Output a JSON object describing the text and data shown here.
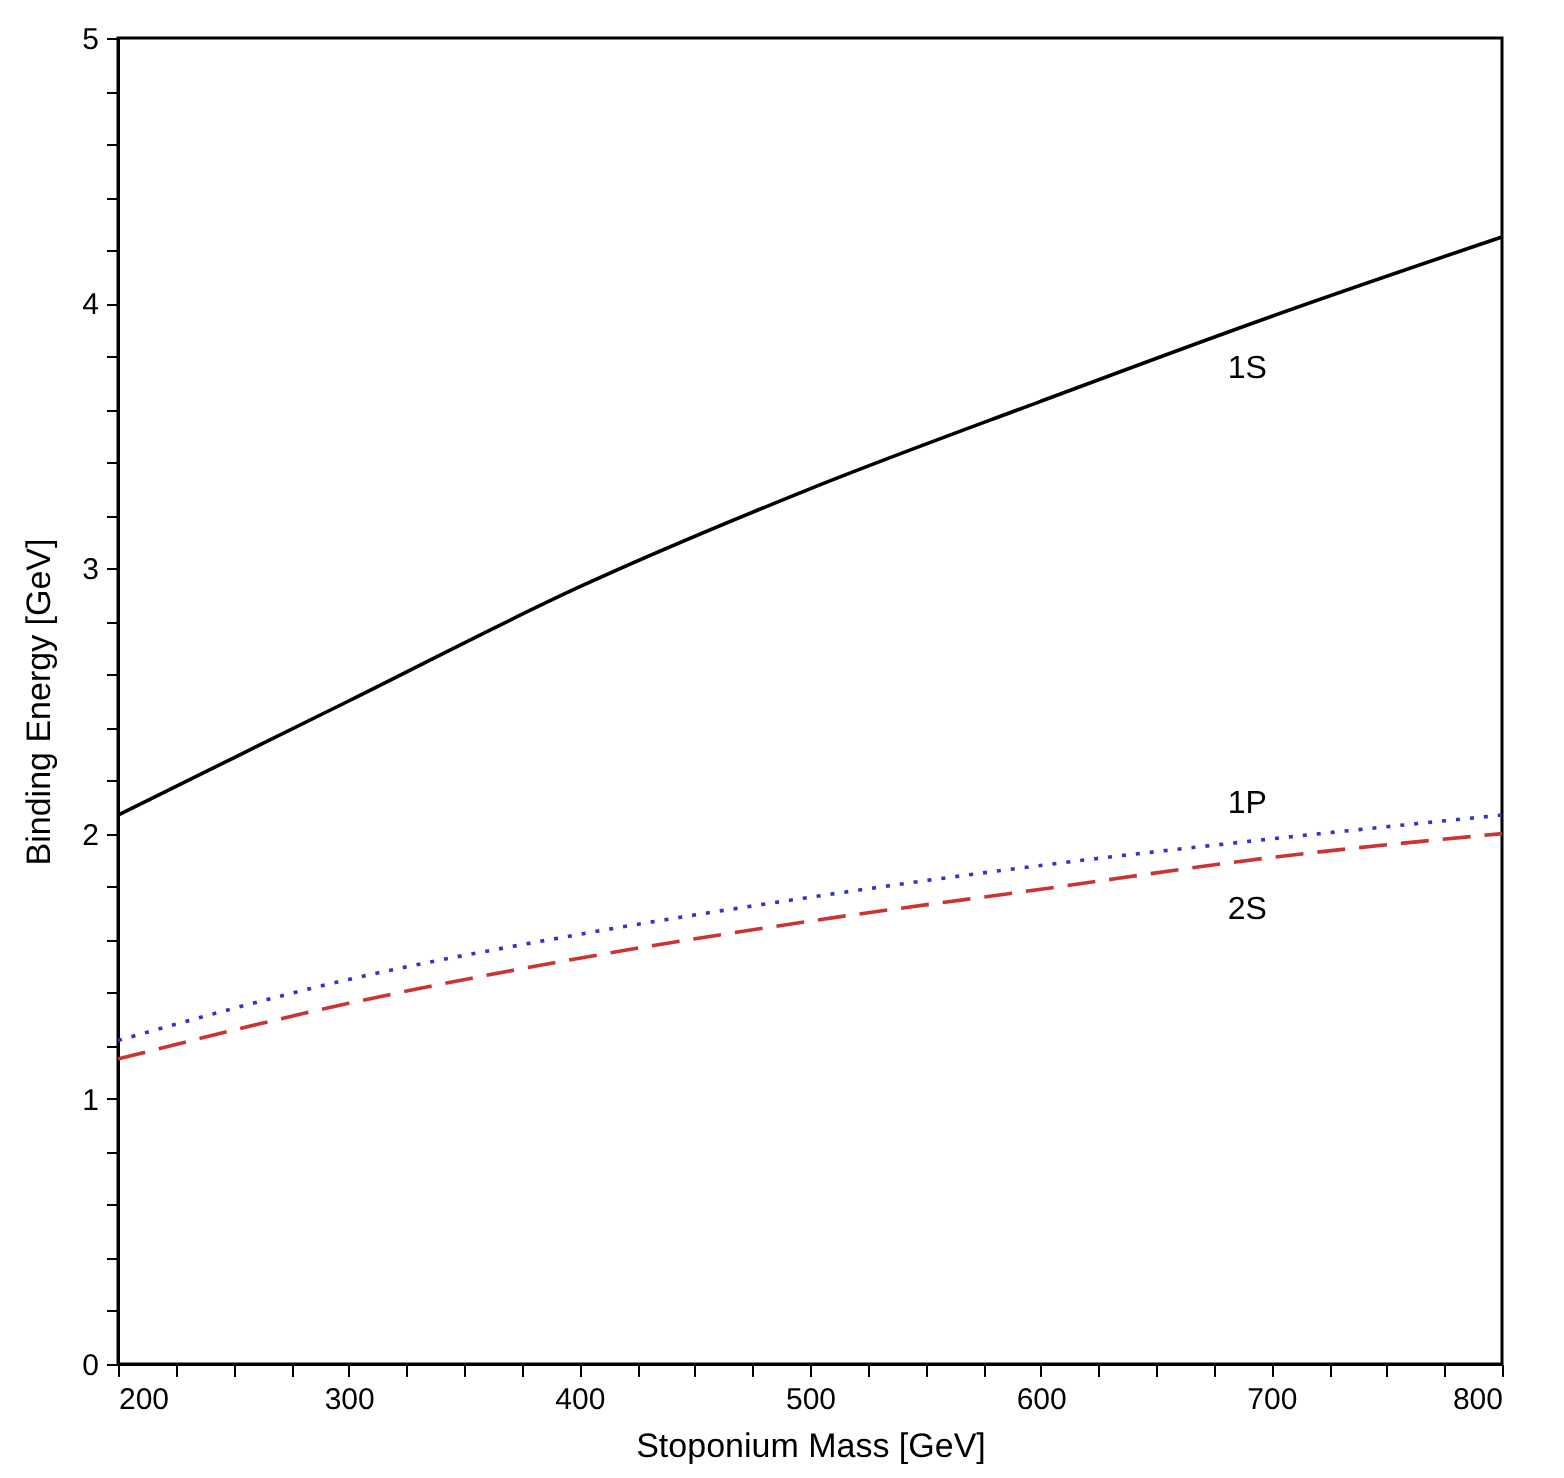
{
  "chart_data": {
    "type": "line",
    "xlabel": "Stoponium Mass  [GeV]",
    "ylabel": "Binding Energy  [GeV]",
    "x": [
      200,
      300,
      400,
      500,
      600,
      700,
      800
    ],
    "series": [
      {
        "name": "1S",
        "color": "#000000",
        "line_style": "solid",
        "values": [
          2.07,
          2.5,
          2.93,
          3.3,
          3.63,
          3.95,
          4.25
        ]
      },
      {
        "name": "1P",
        "color": "#3333cc",
        "line_style": "dotted",
        "values": [
          1.22,
          1.45,
          1.62,
          1.76,
          1.88,
          1.98,
          2.07
        ]
      },
      {
        "name": "2S",
        "color": "#cc3333",
        "line_style": "dashed",
        "values": [
          1.15,
          1.36,
          1.53,
          1.67,
          1.79,
          1.91,
          2.0
        ]
      }
    ],
    "xlim": [
      200,
      800
    ],
    "xticks": [
      200,
      {
        "value": 225,
        "label": null
      },
      {
        "value": 250,
        "label": null
      },
      {
        "value": 275,
        "label": null
      },
      300,
      {
        "value": 325,
        "label": null
      },
      {
        "value": 350,
        "label": null
      },
      {
        "value": 375,
        "label": null
      },
      400,
      {
        "value": 425,
        "label": null
      },
      {
        "value": 450,
        "label": null
      },
      {
        "value": 475,
        "label": null
      },
      500,
      {
        "value": 525,
        "label": null
      },
      {
        "value": 550,
        "label": null
      },
      {
        "value": 575,
        "label": null
      },
      600,
      {
        "value": 625,
        "label": null
      },
      {
        "value": 650,
        "label": null
      },
      {
        "value": 675,
        "label": null
      },
      700,
      {
        "value": 725,
        "label": null
      },
      {
        "value": 750,
        "label": null
      },
      {
        "value": 775,
        "label": null
      },
      800
    ],
    "ylim": [
      0,
      5
    ],
    "yticks": [
      0,
      {
        "value": 0.2,
        "label": null
      },
      {
        "value": 0.4,
        "label": null
      },
      {
        "value": 0.6,
        "label": null
      },
      {
        "value": 0.8,
        "label": null
      },
      1,
      {
        "value": 1.2,
        "label": null
      },
      {
        "value": 1.4,
        "label": null
      },
      {
        "value": 1.6,
        "label": null
      },
      {
        "value": 1.8,
        "label": null
      },
      2,
      {
        "value": 2.2,
        "label": null
      },
      {
        "value": 2.4,
        "label": null
      },
      {
        "value": 2.6,
        "label": null
      },
      {
        "value": 2.8,
        "label": null
      },
      3,
      {
        "value": 3.2,
        "label": null
      },
      {
        "value": 3.4,
        "label": null
      },
      {
        "value": 3.6,
        "label": null
      },
      {
        "value": 3.8,
        "label": null
      },
      4,
      {
        "value": 4.2,
        "label": null
      },
      {
        "value": 4.4,
        "label": null
      },
      {
        "value": 4.6,
        "label": null
      },
      {
        "value": 4.8,
        "label": null
      },
      5
    ],
    "grid": false
  }
}
